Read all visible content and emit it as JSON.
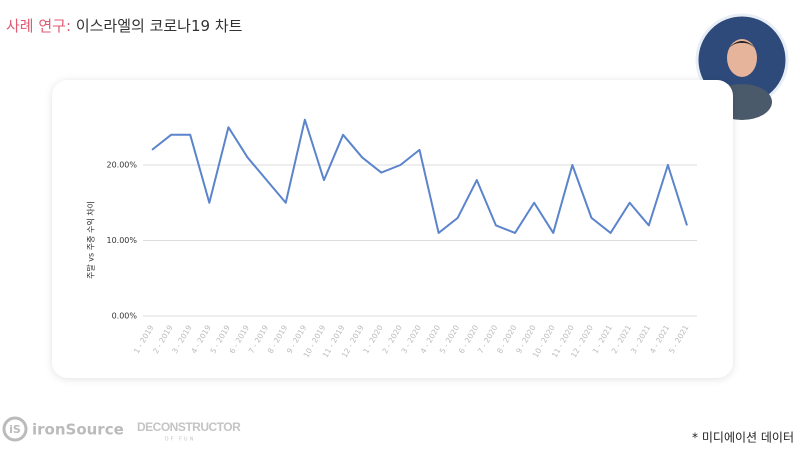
{
  "slide": {
    "title_prefix": "사례 연구:",
    "title": "이스라엘의 코로나19 차트",
    "footnote": "* 미디에이션 데이터",
    "logos": [
      "ironSource",
      "DECONSTRUCTOR",
      "OF FUN"
    ]
  },
  "chart_data": {
    "type": "line",
    "ylabel": "주말 vs 주중 수익 차이",
    "categories": [
      "1 - 2019",
      "2 - 2019",
      "3 - 2019",
      "4 - 2019",
      "5 - 2019",
      "6 - 2019",
      "7 - 2019",
      "8 - 2019",
      "9 - 2019",
      "10 - 2019",
      "11 - 2019",
      "12 - 2019",
      "1 - 2020",
      "2 - 2020",
      "3 - 2020",
      "4 - 2020",
      "5 - 2020",
      "6 - 2020",
      "7 - 2020",
      "8 - 2020",
      "9 - 2020",
      "10 - 2020",
      "11 - 2020",
      "12 - 2020",
      "1 - 2021",
      "2 - 2021",
      "3 - 2021",
      "4 - 2021",
      "5 - 2021"
    ],
    "values": [
      22,
      24,
      24,
      15,
      25,
      21,
      18,
      15,
      26,
      18,
      24,
      21,
      19,
      20,
      22,
      11,
      13,
      18,
      12,
      11,
      15,
      11,
      20,
      13,
      11,
      15,
      12,
      20,
      12
    ],
    "color": "#5b84cc",
    "ylim": [
      0,
      28
    ],
    "yticks": [
      {
        "value": 0,
        "label": "0.00%"
      },
      {
        "value": 10,
        "label": "10.00%"
      },
      {
        "value": 20,
        "label": "20.00%"
      }
    ],
    "grid": true
  }
}
